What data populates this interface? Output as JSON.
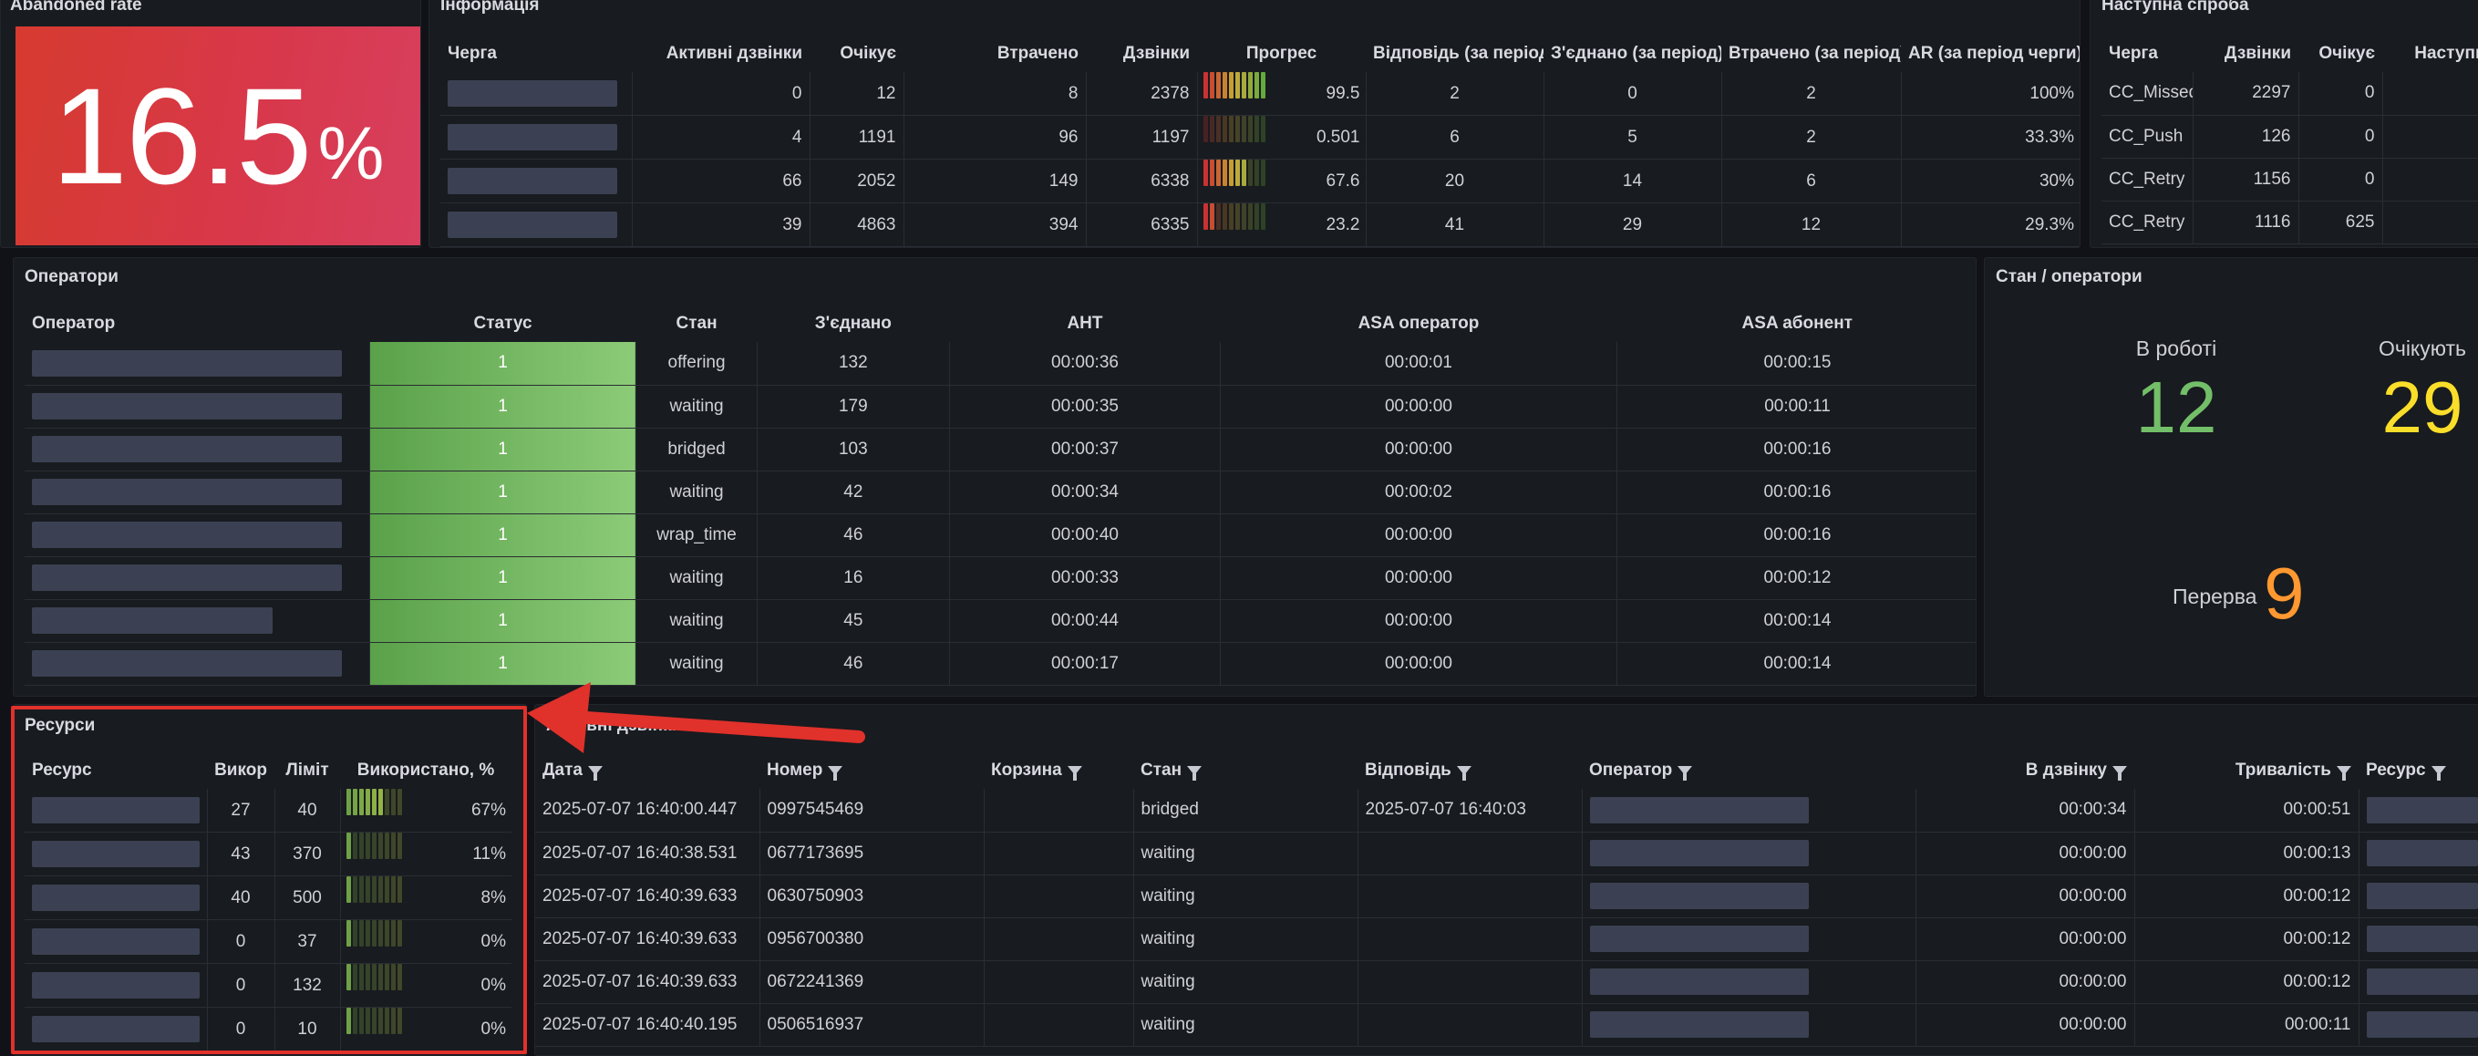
{
  "abandoned": {
    "title": "Abandoned rate",
    "value": "16.5",
    "unit": "%"
  },
  "info": {
    "title": "Інформація",
    "columns": [
      "Черга",
      "Активні дзвінки",
      "Очікує",
      "Втрачено",
      "Дзвінки",
      "Прогрес",
      "Відповідь (за період)",
      "З'єднано (за період)",
      "Втрачено (за період)",
      "AR (за період черги)"
    ],
    "rows": [
      {
        "active": "0",
        "waiting": "12",
        "lost": "8",
        "calls": "2378",
        "progress": 99.5,
        "progress_label": "99.5",
        "answered": "2",
        "connected": "0",
        "lost_period": "2",
        "ar": "100%"
      },
      {
        "active": "4",
        "waiting": "1191",
        "lost": "96",
        "calls": "1197",
        "progress": 0.501,
        "progress_label": "0.501",
        "answered": "6",
        "connected": "5",
        "lost_period": "2",
        "ar": "33.3%"
      },
      {
        "active": "66",
        "waiting": "2052",
        "lost": "149",
        "calls": "6338",
        "progress": 67.6,
        "progress_label": "67.6",
        "answered": "20",
        "connected": "14",
        "lost_period": "6",
        "ar": "30%"
      },
      {
        "active": "39",
        "waiting": "4863",
        "lost": "394",
        "calls": "6335",
        "progress": 23.2,
        "progress_label": "23.2",
        "answered": "41",
        "connected": "29",
        "lost_period": "12",
        "ar": "29.3%"
      }
    ]
  },
  "next_attempt": {
    "title": "Наступна спроба",
    "columns": [
      "Черга",
      "Дзвінки",
      "Очікує",
      "Наступна"
    ],
    "rows": [
      {
        "queue": "CC_Missed",
        "calls": "2297",
        "waiting": "0"
      },
      {
        "queue": "CC_Push",
        "calls": "126",
        "waiting": "0"
      },
      {
        "queue": "CC_Retry",
        "calls": "1156",
        "waiting": "0"
      },
      {
        "queue": "CC_Retry",
        "calls": "1116",
        "waiting": "625"
      }
    ]
  },
  "operators": {
    "title": "Оператори",
    "columns": [
      "Оператор",
      "Статус",
      "Стан",
      "З'єднано",
      "AHT",
      "ASA оператор",
      "ASA абонент"
    ],
    "rows": [
      {
        "status": "1",
        "state": "offering",
        "connected": "132",
        "aht": "00:00:36",
        "asa_op": "00:00:01",
        "asa_sub": "00:00:15"
      },
      {
        "status": "1",
        "state": "waiting",
        "connected": "179",
        "aht": "00:00:35",
        "asa_op": "00:00:00",
        "asa_sub": "00:00:11"
      },
      {
        "status": "1",
        "state": "bridged",
        "connected": "103",
        "aht": "00:00:37",
        "asa_op": "00:00:00",
        "asa_sub": "00:00:16"
      },
      {
        "status": "1",
        "state": "waiting",
        "connected": "42",
        "aht": "00:00:34",
        "asa_op": "00:00:02",
        "asa_sub": "00:00:16"
      },
      {
        "status": "1",
        "state": "wrap_time",
        "connected": "46",
        "aht": "00:00:40",
        "asa_op": "00:00:00",
        "asa_sub": "00:00:16"
      },
      {
        "status": "1",
        "state": "waiting",
        "connected": "16",
        "aht": "00:00:33",
        "asa_op": "00:00:00",
        "asa_sub": "00:00:12"
      },
      {
        "status": "1",
        "state": "waiting",
        "connected": "45",
        "aht": "00:00:44",
        "asa_op": "00:00:00",
        "asa_sub": "00:00:14"
      },
      {
        "status": "1",
        "state": "waiting",
        "connected": "46",
        "aht": "00:00:17",
        "asa_op": "00:00:00",
        "asa_sub": "00:00:14"
      }
    ]
  },
  "state_ops": {
    "title": "Стан / оператори",
    "in_work_label": "В роботі",
    "in_work_value": "12",
    "waiting_label": "Очікують",
    "waiting_value": "29",
    "break_label": "Перерва",
    "break_value": "9",
    "colors": {
      "green": "#73bf69",
      "yellow": "#fade2a",
      "orange": "#ff9830"
    }
  },
  "resources": {
    "title": "Ресурси",
    "columns": [
      "Ресурс",
      "Викор",
      "Ліміт",
      "Використано, %"
    ],
    "rows": [
      {
        "used": "27",
        "limit": "40",
        "pct": 67,
        "pct_label": "67%"
      },
      {
        "used": "43",
        "limit": "370",
        "pct": 11,
        "pct_label": "11%"
      },
      {
        "used": "40",
        "limit": "500",
        "pct": 8,
        "pct_label": "8%"
      },
      {
        "used": "0",
        "limit": "37",
        "pct": 0,
        "pct_label": "0%"
      },
      {
        "used": "0",
        "limit": "132",
        "pct": 0,
        "pct_label": "0%"
      },
      {
        "used": "0",
        "limit": "10",
        "pct": 0,
        "pct_label": "0%"
      }
    ]
  },
  "active_calls": {
    "title": "Активні дзвінки",
    "columns": [
      "Дата",
      "Номер",
      "Корзина",
      "Стан",
      "Відповідь",
      "Оператор",
      "В дзвінку",
      "Тривалість",
      "Ресурс"
    ],
    "rows": [
      {
        "date": "2025-07-07 16:40:00.447",
        "number": "0997545469",
        "basket": "",
        "state": "bridged",
        "answer": "2025-07-07 16:40:03",
        "in_call": "00:00:34",
        "duration": "00:00:51"
      },
      {
        "date": "2025-07-07 16:40:38.531",
        "number": "0677173695",
        "basket": "",
        "state": "waiting",
        "answer": "",
        "in_call": "00:00:00",
        "duration": "00:00:13"
      },
      {
        "date": "2025-07-07 16:40:39.633",
        "number": "0630750903",
        "basket": "",
        "state": "waiting",
        "answer": "",
        "in_call": "00:00:00",
        "duration": "00:00:12"
      },
      {
        "date": "2025-07-07 16:40:39.633",
        "number": "0956700380",
        "basket": "",
        "state": "waiting",
        "answer": "",
        "in_call": "00:00:00",
        "duration": "00:00:12"
      },
      {
        "date": "2025-07-07 16:40:39.633",
        "number": "0672241369",
        "basket": "",
        "state": "waiting",
        "answer": "",
        "in_call": "00:00:00",
        "duration": "00:00:12"
      },
      {
        "date": "2025-07-07 16:40:40.195",
        "number": "0506516937",
        "basket": "",
        "state": "waiting",
        "answer": "",
        "in_call": "00:00:00",
        "duration": "00:00:11"
      }
    ]
  },
  "annotation": {
    "highlight_color": "#e0312b",
    "arrow_color": "#e0312b"
  }
}
